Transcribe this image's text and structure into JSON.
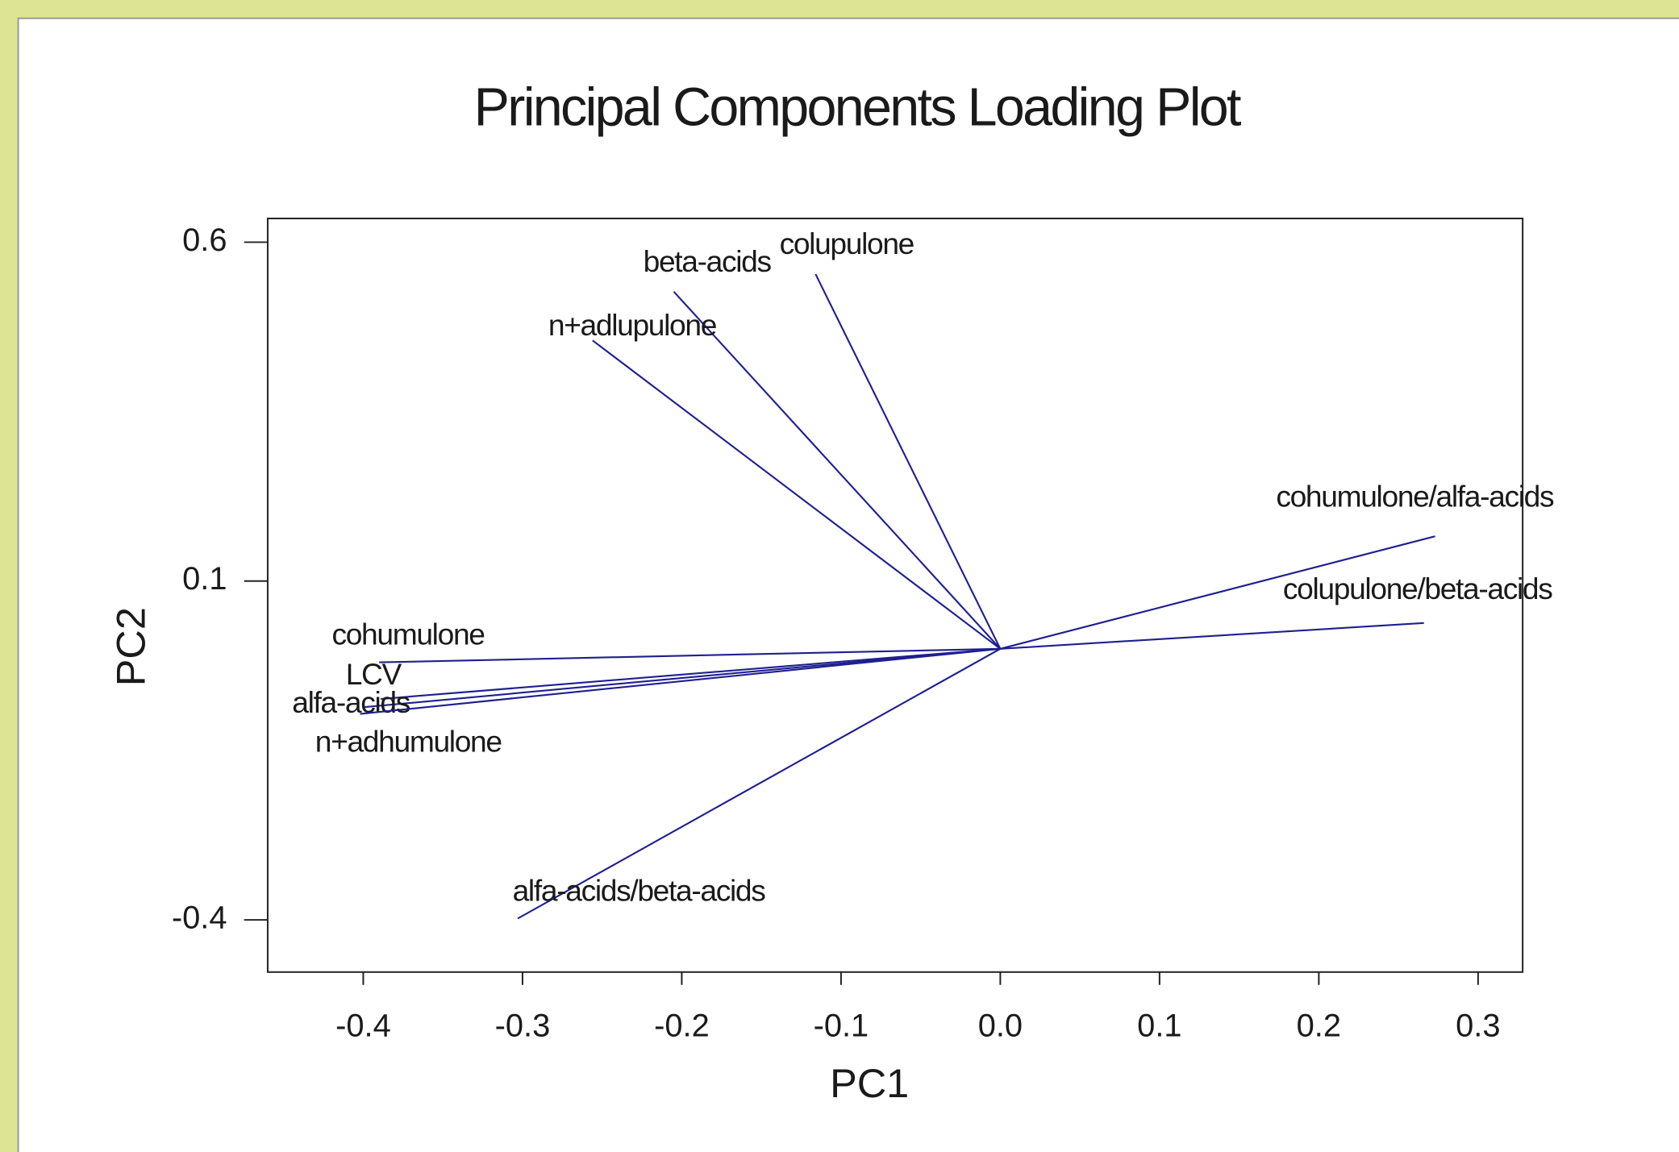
{
  "chart_data": {
    "type": "loading",
    "title": "Principal Components Loading Plot",
    "x_label": "PC1",
    "y_label": "PC2",
    "labels": [
      "colupulone",
      "beta-acids",
      "n+adlupulone",
      "cohumulone/alfa-acids",
      "colupulone/beta-acids",
      "cohumulone",
      "LCV",
      "alfa-acids",
      "n+adhumulone",
      "alfa-acids/beta-acids"
    ],
    "x": [
      -0.116,
      -0.205,
      -0.256,
      0.273,
      0.266,
      -0.39,
      -0.389,
      -0.399,
      -0.402,
      -0.303
    ],
    "y": [
      0.553,
      0.527,
      0.455,
      0.166,
      0.038,
      -0.02,
      -0.074,
      -0.086,
      -0.096,
      -0.398
    ],
    "color": "#1f1f8f",
    "xlim": [
      -0.46,
      0.328
    ],
    "ylim": [
      -0.477,
      0.635
    ],
    "xticks": [
      -0.4,
      -0.3,
      -0.2,
      -0.1,
      {
        "value": 0,
        "label": "0.0"
      },
      0.1,
      0.2,
      0.3
    ],
    "yticks": [
      -0.4,
      0.1,
      0.6
    ]
  }
}
